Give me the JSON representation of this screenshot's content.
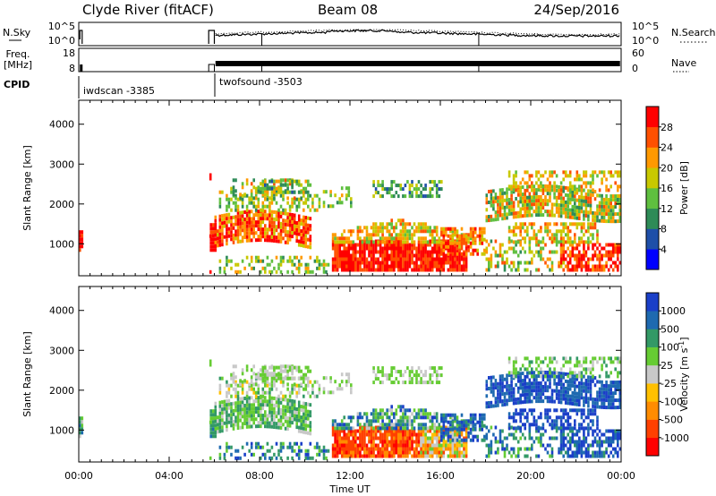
{
  "header": {
    "station": "Clyde River (fitACF)",
    "beam": "Beam 08",
    "date": "24/Sep/2016"
  },
  "colors": {
    "axis": "#000000",
    "power_scale": [
      "#0000ff",
      "#1e4fa8",
      "#2e8b57",
      "#5fbf3f",
      "#c8c800",
      "#ff9900",
      "#ff5000",
      "#ff0000"
    ],
    "velocity_scale": [
      "#ff0000",
      "#ff4000",
      "#ff8c00",
      "#ffc000",
      "#c8c8c8",
      "#66cc33",
      "#339966",
      "#1e6ab0",
      "#1a3fc8"
    ]
  },
  "top_panels": {
    "noise": {
      "left_label": "N.Sky",
      "right_label": "N.Search",
      "left_ticks": [
        "10^5",
        "10^0"
      ],
      "right_ticks": [
        "10^5",
        "10^0"
      ]
    },
    "freq": {
      "left_label_line1": "Freq.",
      "left_label_line2": "[MHz]",
      "right_label": "Nave",
      "left_ticks": [
        "18",
        "8"
      ],
      "right_ticks": [
        "60",
        "0"
      ]
    },
    "cpid": {
      "label": "CPID",
      "segments": [
        {
          "name": "iwdscan -3385",
          "start_hour": 0.0
        },
        {
          "name": "twofsound -3503",
          "start_hour": 6.0
        }
      ]
    }
  },
  "chart_data": [
    {
      "type": "heatmap",
      "quantity": "power",
      "ylabel": "Slant Range [km]",
      "ylim": [
        200,
        4600
      ],
      "y_ticks": [
        "1000",
        "2000",
        "3000",
        "4000"
      ],
      "xlim": [
        0,
        24
      ],
      "colorbar_label": "Power [dB]",
      "colorbar_ticks": [
        "4",
        "8",
        "12",
        "16",
        "20",
        "24",
        "28"
      ],
      "colorbar_range": [
        0,
        32
      ]
    },
    {
      "type": "heatmap",
      "quantity": "velocity",
      "ylabel": "Slant Range [km]",
      "ylim": [
        200,
        4600
      ],
      "y_ticks": [
        "1000",
        "2000",
        "3000",
        "4000"
      ],
      "xlim": [
        0,
        24
      ],
      "xlabel": "Time UT",
      "x_ticks": [
        "00:00",
        "04:00",
        "08:00",
        "12:00",
        "16:00",
        "20:00",
        "00:00"
      ],
      "colorbar_label": "Velocity [m s^-1]",
      "colorbar_ticks": [
        "1000",
        "500",
        "100",
        "25",
        "-25",
        "-100",
        "-500",
        "-1000"
      ]
    }
  ]
}
